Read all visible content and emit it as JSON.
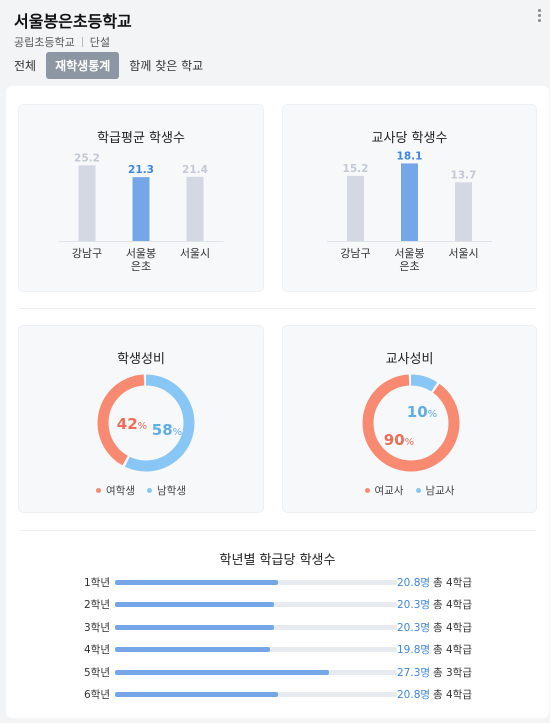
{
  "header": {
    "title": "서울봉은초등학교",
    "type": "공립초등학교",
    "session": "단설"
  },
  "tabs": [
    {
      "label": "전체",
      "active": false
    },
    {
      "label": "재학생통계",
      "active": true
    },
    {
      "label": "함께 찾은 학교",
      "active": false
    }
  ],
  "colors": {
    "highlight": "#75a7e8",
    "muted": "#d3d8e2",
    "female": "#f98a72",
    "male": "#87c6f5"
  },
  "chart_data": [
    {
      "type": "bar",
      "title": "학급평균 학생수",
      "categories": [
        "강남구",
        "서울봉은초",
        "서울시"
      ],
      "category_lines": [
        [
          "강남구"
        ],
        [
          "서울봉",
          "은초"
        ],
        [
          "서울시"
        ]
      ],
      "values": [
        25.2,
        21.3,
        21.4
      ],
      "value_labels": [
        "25.2",
        "21.3",
        "21.4"
      ],
      "highlight_index": 1,
      "ylim": [
        0,
        30
      ]
    },
    {
      "type": "bar",
      "title": "교사당 학생수",
      "categories": [
        "강남구",
        "서울봉은초",
        "서울시"
      ],
      "category_lines": [
        [
          "강남구"
        ],
        [
          "서울봉",
          "은초"
        ],
        [
          "서울시"
        ]
      ],
      "values": [
        15.2,
        18.1,
        13.7
      ],
      "value_labels": [
        "15.2",
        "18.1",
        "13.7"
      ],
      "highlight_index": 1,
      "ylim": [
        0,
        21
      ]
    },
    {
      "type": "pie",
      "title": "학생성비",
      "series": [
        {
          "name": "여학생",
          "value": 42,
          "label": "42"
        },
        {
          "name": "남학생",
          "value": 58,
          "label": "58"
        }
      ],
      "unit": "%"
    },
    {
      "type": "pie",
      "title": "교사성비",
      "series": [
        {
          "name": "여교사",
          "value": 90,
          "label": "90"
        },
        {
          "name": "남교사",
          "value": 10,
          "label": "10"
        }
      ],
      "unit": "%"
    },
    {
      "type": "bar",
      "title": "학년별 학급당 학생수",
      "orientation": "horizontal",
      "categories": [
        "1학년",
        "2학년",
        "3학년",
        "4학년",
        "5학년",
        "6학년"
      ],
      "values": [
        20.8,
        20.3,
        20.3,
        19.8,
        27.3,
        20.8
      ],
      "value_labels": [
        "20.8명",
        "20.3명",
        "20.3명",
        "19.8명",
        "27.3명",
        "20.8명"
      ],
      "totals": [
        "총 4학급",
        "총 4학급",
        "총 4학급",
        "총 4학급",
        "총 3학급",
        "총 4학급"
      ],
      "xlim": [
        0,
        36
      ]
    }
  ]
}
